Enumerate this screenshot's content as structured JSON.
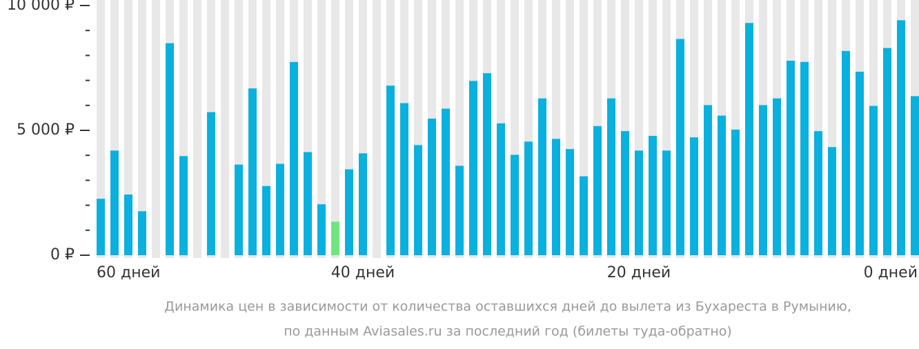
{
  "chart_data": {
    "type": "bar",
    "categories": [
      "60 дней",
      null,
      null,
      null,
      null,
      null,
      null,
      null,
      null,
      null,
      null,
      null,
      null,
      null,
      null,
      null,
      null,
      null,
      null,
      "40 дней",
      null,
      null,
      null,
      null,
      null,
      null,
      null,
      null,
      null,
      null,
      null,
      null,
      null,
      null,
      null,
      null,
      null,
      null,
      null,
      "20 дней",
      null,
      null,
      null,
      null,
      null,
      null,
      null,
      null,
      null,
      null,
      null,
      null,
      null,
      null,
      null,
      null,
      null,
      null,
      null,
      "0 дней"
    ],
    "values": [
      2260,
      4190,
      2430,
      1760,
      null,
      8490,
      3970,
      null,
      5730,
      null,
      3630,
      6680,
      2770,
      3660,
      7740,
      4130,
      2040,
      1340,
      3440,
      4080,
      null,
      6790,
      6090,
      4410,
      5470,
      5870,
      3580,
      6980,
      7290,
      5280,
      4020,
      4550,
      6280,
      4660,
      4250,
      3160,
      5170,
      6280,
      4970,
      4190,
      4780,
      4190,
      8660,
      4720,
      6010,
      5590,
      5030,
      9300,
      6010,
      6280,
      7790,
      7740,
      4970,
      4330,
      8180,
      7350,
      5980,
      8300,
      9410,
      6370
    ],
    "color": "#0ab0de",
    "highlight_color": "#6fe67f",
    "highlight": [
      17
    ],
    "background_color": "#e8e8e8",
    "ylim": [
      0,
      10000
    ],
    "yticks": [
      {
        "value": 0,
        "label": "0 ₽"
      },
      {
        "value": 5000,
        "label": "5 000 ₽"
      },
      {
        "value": 10000,
        "label": "10 000 ₽"
      }
    ],
    "yminor_ticks": [
      1000,
      2000,
      3000,
      4000,
      6000,
      7000,
      8000,
      9000
    ],
    "caption": [
      "Динамика цен в зависимости от количества оставшихся дней до вылета из Бухареста в Румынию,",
      "по данным Aviasales.ru за последний год (билеты туда-обратно)"
    ]
  }
}
